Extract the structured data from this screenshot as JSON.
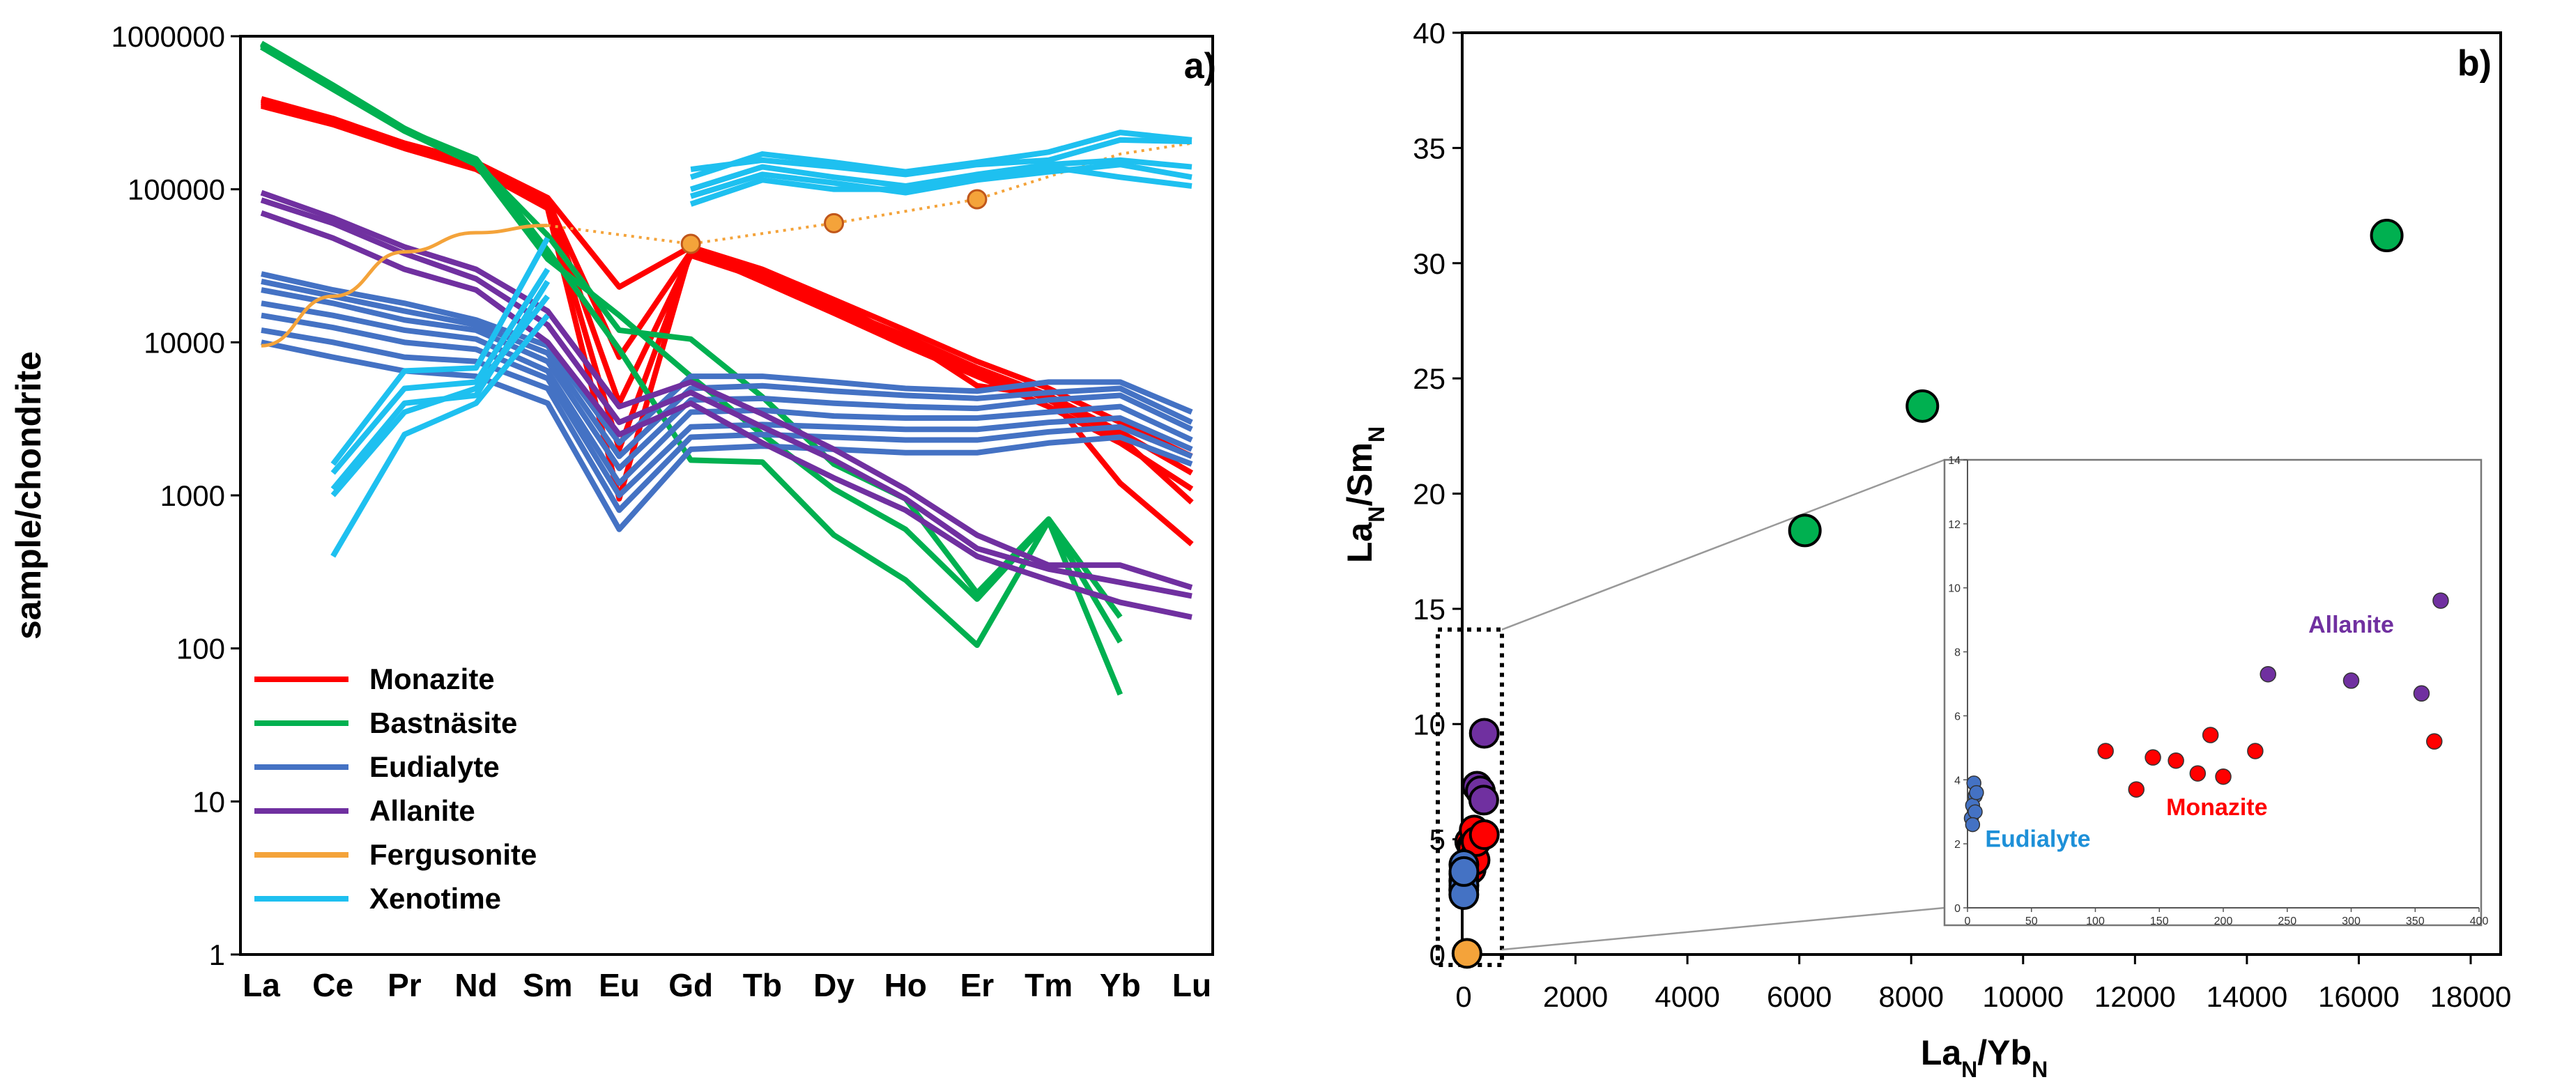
{
  "chart_data": [
    {
      "id": "a",
      "type": "line",
      "panel_label": "a)",
      "ylabel": "sample/chondrite",
      "xlabel": "",
      "yscale": "log",
      "ylim": [
        1,
        1000000
      ],
      "y_ticks": [
        "1",
        "10",
        "100",
        "1000",
        "10000",
        "100000",
        "1000000"
      ],
      "categories": [
        "La",
        "Ce",
        "Pr",
        "Nd",
        "Sm",
        "Eu",
        "Gd",
        "Tb",
        "Dy",
        "Ho",
        "Er",
        "Tm",
        "Yb",
        "Lu"
      ],
      "legend": [
        {
          "name": "Monazite",
          "color": "#ff0000"
        },
        {
          "name": "Bastnäsite",
          "color": "#00b050"
        },
        {
          "name": "Eudialyte",
          "color": "#4472c4"
        },
        {
          "name": "Allanite",
          "color": "#7030a0"
        },
        {
          "name": "Fergusonite",
          "color": "#f4a33a"
        },
        {
          "name": "Xenotime",
          "color": "#1ec0f0"
        }
      ],
      "series": [
        {
          "name": "Monazite",
          "color": "#ff0000",
          "values": [
            [
              390000,
              290000,
              200000,
              150000,
              88000,
              23000,
              42000,
              30000,
              19000,
              12000,
              7500,
              5000,
              3000,
              1800
            ],
            [
              360000,
              270000,
              190000,
              140000,
              80000,
              2000,
              38000,
              27000,
              17000,
              11000,
              6800,
              4500,
              2600,
              1400
            ],
            [
              350000,
              265000,
              185000,
              135000,
              75000,
              950,
              40000,
              25000,
              15500,
              9500,
              6000,
              3800,
              2200,
              1100
            ],
            [
              380000,
              280000,
              195000,
              148000,
              84000,
              8000,
              39000,
              29000,
              18000,
              10500,
              5200,
              4500,
              1200,
              480
            ],
            [
              370000,
              275000,
              192000,
              142000,
              82000,
              4000,
              37000,
              26000,
              16500,
              10000,
              6500,
              4200,
              2400,
              900
            ]
          ]
        },
        {
          "name": "Bastnäsite",
          "color": "#00b050",
          "values": [
            [
              900000,
              480000,
              250000,
              150000,
              50000,
              12000,
              10500,
              4400,
              1600,
              950,
              230,
              700,
              160,
              null
            ],
            [
              880000,
              460000,
              245000,
              158000,
              40000,
              9000,
              1700,
              1650,
              550,
              280,
              105,
              680,
              50,
              null
            ],
            [
              850000,
              450000,
              240000,
              145000,
              35000,
              15000,
              6000,
              2500,
              1100,
              600,
              210,
              680,
              110,
              null
            ]
          ]
        },
        {
          "name": "Eudialyte",
          "color": "#4472c4",
          "values": [
            [
              28000,
              22000,
              18000,
              14000,
              9500,
              2200,
              6000,
              6000,
              5500,
              5000,
              4800,
              5500,
              5500,
              3500
            ],
            [
              25000,
              20000,
              16000,
              13000,
              8500,
              1800,
              5000,
              5200,
              4800,
              4500,
              4300,
              4700,
              5000,
              3000
            ],
            [
              22000,
              18000,
              14000,
              12000,
              7500,
              1500,
              4200,
              4300,
              4000,
              3800,
              3700,
              4200,
              4500,
              2700
            ],
            [
              18000,
              15000,
              12000,
              10500,
              6500,
              1200,
              3500,
              3600,
              3300,
              3200,
              3200,
              3500,
              3800,
              2300
            ],
            [
              15000,
              12500,
              10000,
              9000,
              5800,
              1000,
              2800,
              2900,
              2800,
              2700,
              2700,
              3000,
              3200,
              2000
            ],
            [
              12000,
              10000,
              8000,
              7500,
              5000,
              800,
              2400,
              2500,
              2400,
              2300,
              2300,
              2600,
              2800,
              1800
            ],
            [
              10000,
              8000,
              6500,
              6000,
              4000,
              600,
              2000,
              2100,
              2000,
              1900,
              1900,
              2200,
              2400,
              1600
            ]
          ]
        },
        {
          "name": "Allanite",
          "color": "#7030a0",
          "values": [
            [
              95000,
              65000,
              42000,
              30000,
              16000,
              3800,
              5500,
              3400,
              2000,
              1100,
              550,
              350,
              350,
              250
            ],
            [
              85000,
              60000,
              38000,
              26000,
              13000,
              3000,
              4700,
              2800,
              1700,
              950,
              450,
              330,
              270,
              220
            ],
            [
              70000,
              48000,
              30000,
              22000,
              10000,
              2500,
              4000,
              2200,
              1300,
              800,
              400,
              280,
              200,
              160
            ]
          ]
        },
        {
          "name": "Fergusonite",
          "color": "#f4a33a",
          "values": [
            [
              9500,
              20000,
              39000,
              52000,
              58000,
              null,
              44000,
              null,
              60000,
              null,
              86000,
              null,
              170000,
              200000
            ]
          ],
          "markers": [
            6,
            8,
            10
          ]
        },
        {
          "name": "Xenotime",
          "color": "#1ec0f0",
          "values": [
            [
              null,
              1600,
              6500,
              6800,
              48000,
              null,
              135000,
              155000,
              140000,
              125000,
              145000,
              155000,
              210000,
              205000
            ],
            [
              null,
              1400,
              5000,
              5500,
              30000,
              null,
              120000,
              170000,
              150000,
              130000,
              150000,
              175000,
              235000,
              210000
            ],
            [
              null,
              1100,
              4000,
              4500,
              25000,
              null,
              100000,
              140000,
              120000,
              105000,
              125000,
              145000,
              155000,
              140000
            ],
            [
              null,
              1000,
              3500,
              5000,
              20000,
              null,
              90000,
              125000,
              110000,
              95000,
              115000,
              130000,
              145000,
              120000
            ],
            [
              null,
              400,
              2500,
              4000,
              15000,
              null,
              80000,
              115000,
              100000,
              100000,
              120000,
              140000,
              120000,
              105000
            ]
          ]
        }
      ]
    },
    {
      "id": "b",
      "type": "scatter",
      "panel_label": "b)",
      "xlabel": "LaN/YbN",
      "ylabel": "LaN/SmN",
      "xlim": [
        0,
        18000
      ],
      "ylim": [
        0,
        40
      ],
      "x_ticks": [
        "0",
        "2000",
        "4000",
        "6000",
        "8000",
        "10000",
        "12000",
        "14000",
        "16000",
        "18000"
      ],
      "y_ticks": [
        "0",
        "5",
        "10",
        "15",
        "20",
        "25",
        "30",
        "35",
        "40"
      ],
      "series": [
        {
          "name": "Bastnäsite",
          "color": "#00b050",
          "points": [
            [
              6100,
              18.4
            ],
            [
              8200,
              23.8
            ],
            [
              16500,
              31.2
            ]
          ]
        },
        {
          "name": "Allanite",
          "color": "#7030a0",
          "points": [
            [
              240,
              7.3
            ],
            [
              300,
              7.1
            ],
            [
              360,
              6.7
            ],
            [
              370,
              9.6
            ]
          ]
        },
        {
          "name": "Monazite",
          "color": "#ff0000",
          "points": [
            [
              110,
              4.9
            ],
            [
              145,
              4.7
            ],
            [
              165,
              4.6
            ],
            [
              135,
              3.7
            ],
            [
              185,
              4.2
            ],
            [
              205,
              4.1
            ],
            [
              190,
              5.4
            ],
            [
              225,
              4.9
            ],
            [
              370,
              5.2
            ]
          ]
        },
        {
          "name": "Eudialyte",
          "color": "#4472c4",
          "points": [
            [
              5,
              3.9
            ],
            [
              5,
              3.5
            ],
            [
              4,
              3.2
            ],
            [
              3,
              2.8
            ],
            [
              6,
              3.0
            ],
            [
              4,
              2.6
            ],
            [
              6,
              3.6
            ]
          ]
        },
        {
          "name": "Fergusonite",
          "color": "#f4a33a",
          "points": [
            [
              60,
              0.05
            ]
          ]
        }
      ],
      "inset": {
        "xlim": [
          0,
          400
        ],
        "ylim": [
          0,
          14
        ],
        "x_ticks": [
          "0",
          "50",
          "100",
          "150",
          "200",
          "250",
          "300",
          "350",
          "400"
        ],
        "y_ticks": [
          "0",
          "2",
          "4",
          "6",
          "8",
          "10",
          "12",
          "14"
        ],
        "labels": [
          {
            "text": "Allanite",
            "color": "#7030a0",
            "x": 300,
            "y": 8.6
          },
          {
            "text": "Monazite",
            "color": "#ff0000",
            "x": 195,
            "y": 2.9
          },
          {
            "text": "Eudialyte",
            "color": "#1e90d8",
            "x": 55,
            "y": 1.9
          }
        ],
        "series": [
          {
            "name": "Allanite",
            "color": "#7030a0",
            "points": [
              [
                235,
                7.3
              ],
              [
                300,
                7.1
              ],
              [
                355,
                6.7
              ],
              [
                370,
                9.6
              ]
            ]
          },
          {
            "name": "Monazite",
            "color": "#ff0000",
            "points": [
              [
                108,
                4.9
              ],
              [
                145,
                4.7
              ],
              [
                163,
                4.6
              ],
              [
                132,
                3.7
              ],
              [
                180,
                4.2
              ],
              [
                200,
                4.1
              ],
              [
                190,
                5.4
              ],
              [
                225,
                4.9
              ],
              [
                365,
                5.2
              ]
            ]
          },
          {
            "name": "Eudialyte",
            "color": "#4472c4",
            "points": [
              [
                5,
                3.9
              ],
              [
                6,
                3.5
              ],
              [
                4,
                3.2
              ],
              [
                3,
                2.8
              ],
              [
                6,
                3.0
              ],
              [
                4,
                2.6
              ],
              [
                7,
                3.6
              ]
            ]
          }
        ]
      }
    }
  ]
}
